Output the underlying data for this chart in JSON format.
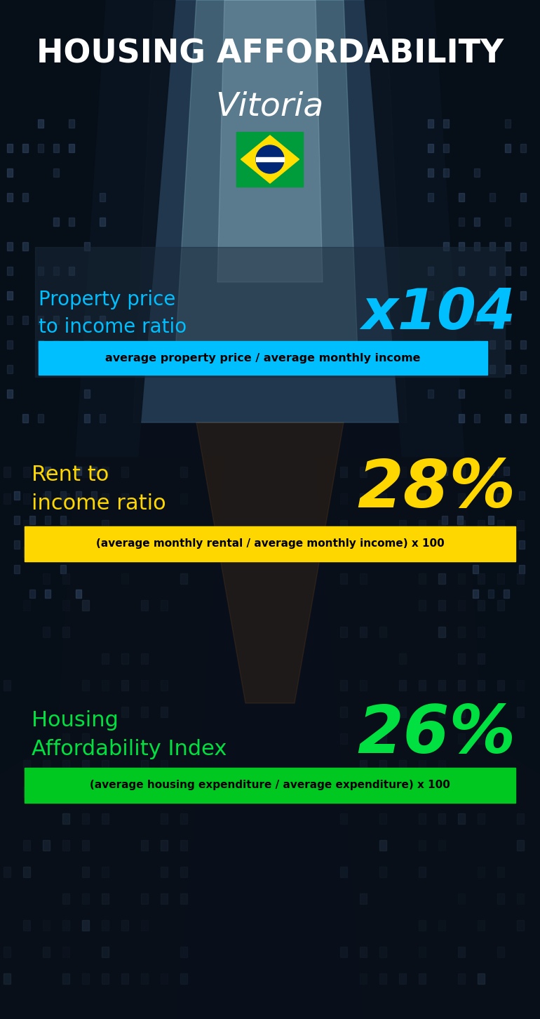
{
  "title_line1": "HOUSING AFFORDABILITY",
  "title_line2": "Vitoria",
  "section1_label": "Property price\nto income ratio",
  "section1_value": "x104",
  "section1_label_color": "#00bfff",
  "section1_value_color": "#00bfff",
  "section1_formula": "average property price / average monthly income",
  "section1_formula_bg": "#00bfff",
  "section2_label": "Rent to\nincome ratio",
  "section2_value": "28%",
  "section2_label_color": "#ffd700",
  "section2_value_color": "#ffd700",
  "section2_formula": "(average monthly rental / average monthly income) x 100",
  "section2_formula_bg": "#ffd700",
  "section3_label": "Housing\nAffordability Index",
  "section3_value": "26%",
  "section3_label_color": "#00e040",
  "section3_value_color": "#00e040",
  "section3_formula": "(average housing expenditure / average expenditure) x 100",
  "section3_formula_bg": "#00c820",
  "bg_dark": "#060d16",
  "bg_mid": "#0d1b2e",
  "sky_color": "#1a3a5a",
  "sky_light": "#5a8aaa"
}
